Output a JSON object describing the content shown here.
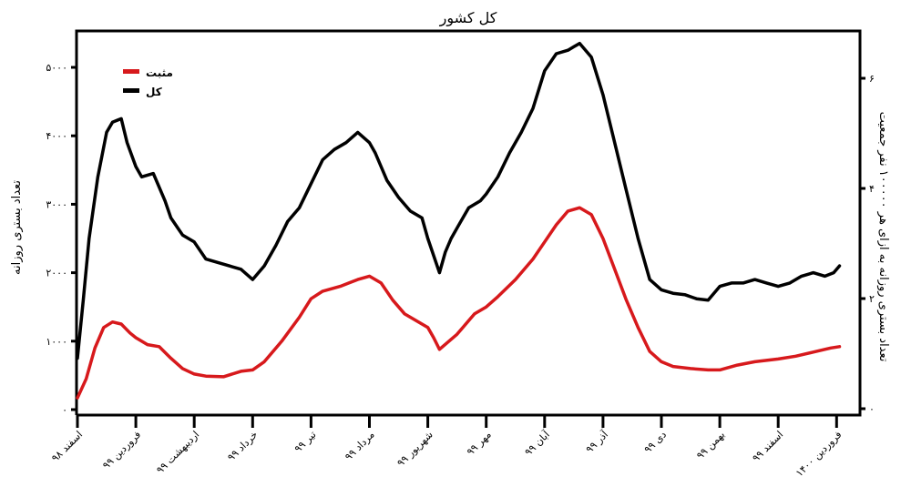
{
  "chart_data": {
    "type": "line",
    "title": "کل کشور",
    "xlabel": "",
    "ylabel": "تعداد بستری روزانه",
    "ylabel_right": "تعداد بستری روزانه به ازای هر ۱۰۰۰۰۰ نفر جمعیت",
    "ylim": [
      0,
      5500
    ],
    "ylim_right": [
      0,
      6.8
    ],
    "yticks": [
      {
        "value": 0,
        "label": "۰"
      },
      {
        "value": 1000,
        "label": "۱۰۰۰"
      },
      {
        "value": 2000,
        "label": "۲۰۰۰"
      },
      {
        "value": 3000,
        "label": "۳۰۰۰"
      },
      {
        "value": 4000,
        "label": "۴۰۰۰"
      },
      {
        "value": 5000,
        "label": "۵۰۰۰"
      }
    ],
    "yticks_right": [
      {
        "value": 0,
        "label": "۰"
      },
      {
        "value": 2,
        "label": "۲"
      },
      {
        "value": 4,
        "label": "۴"
      },
      {
        "value": 6,
        "label": "۶"
      }
    ],
    "categories": [
      "اسفند ۹۸",
      "فروردین ۹۹",
      "اردیبهشت ۹۹",
      "خرداد ۹۹",
      "تیر ۹۹",
      "مرداد ۹۹",
      "شهریور ۹۹",
      "مهر ۹۹",
      "آبان ۹۹",
      "آذر ۹۹",
      "دی ۹۹",
      "بهمن ۹۹",
      "اسفند ۹۹",
      "فروردین ۱۴۰۰"
    ],
    "x_positions": [
      0,
      1,
      2,
      3,
      4,
      5,
      6,
      7,
      8,
      9,
      10,
      11,
      12,
      13
    ],
    "legend_position": "upper-left",
    "grid": false,
    "series": [
      {
        "name": "مثبت",
        "color": "#d7191c",
        "x": [
          0.0,
          0.15,
          0.3,
          0.45,
          0.6,
          0.75,
          0.9,
          1.0,
          1.2,
          1.4,
          1.6,
          1.8,
          2.0,
          2.2,
          2.5,
          2.8,
          3.0,
          3.2,
          3.5,
          3.8,
          4.0,
          4.2,
          4.5,
          4.8,
          5.0,
          5.2,
          5.4,
          5.6,
          5.8,
          6.0,
          6.1,
          6.2,
          6.5,
          6.8,
          7.0,
          7.2,
          7.5,
          7.8,
          8.0,
          8.2,
          8.4,
          8.6,
          8.8,
          9.0,
          9.2,
          9.4,
          9.6,
          9.8,
          10.0,
          10.2,
          10.5,
          10.8,
          11.0,
          11.3,
          11.6,
          12.0,
          12.3,
          12.6,
          12.9,
          13.05
        ],
        "values": [
          170,
          450,
          900,
          1200,
          1280,
          1250,
          1120,
          1050,
          950,
          920,
          750,
          600,
          520,
          490,
          480,
          560,
          580,
          700,
          1000,
          1350,
          1620,
          1730,
          1800,
          1900,
          1950,
          1850,
          1600,
          1400,
          1300,
          1200,
          1050,
          880,
          1100,
          1400,
          1500,
          1650,
          1900,
          2200,
          2450,
          2700,
          2900,
          2950,
          2850,
          2500,
          2050,
          1600,
          1200,
          850,
          700,
          630,
          600,
          580,
          580,
          650,
          700,
          740,
          780,
          840,
          900,
          920
        ]
      },
      {
        "name": "کل",
        "color": "#000000",
        "x": [
          0.0,
          0.1,
          0.2,
          0.35,
          0.5,
          0.6,
          0.75,
          0.85,
          1.0,
          1.1,
          1.3,
          1.5,
          1.6,
          1.8,
          2.0,
          2.2,
          2.4,
          2.6,
          2.8,
          3.0,
          3.1,
          3.2,
          3.4,
          3.6,
          3.8,
          4.0,
          4.2,
          4.4,
          4.6,
          4.8,
          5.0,
          5.1,
          5.3,
          5.5,
          5.7,
          5.9,
          6.0,
          6.2,
          6.3,
          6.4,
          6.5,
          6.7,
          6.9,
          7.0,
          7.2,
          7.4,
          7.6,
          7.8,
          8.0,
          8.2,
          8.4,
          8.5,
          8.6,
          8.8,
          9.0,
          9.2,
          9.4,
          9.6,
          9.8,
          10.0,
          10.2,
          10.4,
          10.6,
          10.8,
          11.0,
          11.2,
          11.4,
          11.6,
          11.8,
          12.0,
          12.2,
          12.4,
          12.6,
          12.8,
          12.95,
          13.05
        ],
        "values": [
          750,
          1600,
          2500,
          3400,
          4050,
          4200,
          4250,
          3900,
          3550,
          3400,
          3450,
          3050,
          2800,
          2550,
          2450,
          2200,
          2150,
          2100,
          2050,
          1900,
          2000,
          2100,
          2400,
          2750,
          2950,
          3300,
          3650,
          3800,
          3900,
          4050,
          3900,
          3750,
          3350,
          3100,
          2900,
          2800,
          2500,
          2000,
          2300,
          2500,
          2650,
          2950,
          3050,
          3150,
          3400,
          3750,
          4050,
          4400,
          4950,
          5200,
          5250,
          5300,
          5350,
          5150,
          4600,
          3900,
          3200,
          2500,
          1900,
          1750,
          1700,
          1680,
          1620,
          1600,
          1800,
          1850,
          1850,
          1900,
          1850,
          1800,
          1850,
          1950,
          2000,
          1950,
          2000,
          2100
        ]
      }
    ]
  }
}
